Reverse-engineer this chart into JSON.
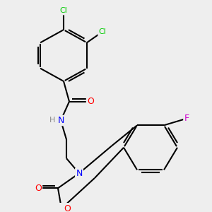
{
  "background_color": "#eeeeee",
  "bond_color": "#000000",
  "atom_colors": {
    "Cl": "#00cc00",
    "F": "#cc00cc",
    "O": "#ff0000",
    "N": "#0000ff",
    "H": "#888888"
  },
  "figsize": [
    3.0,
    3.0
  ],
  "dpi": 100
}
